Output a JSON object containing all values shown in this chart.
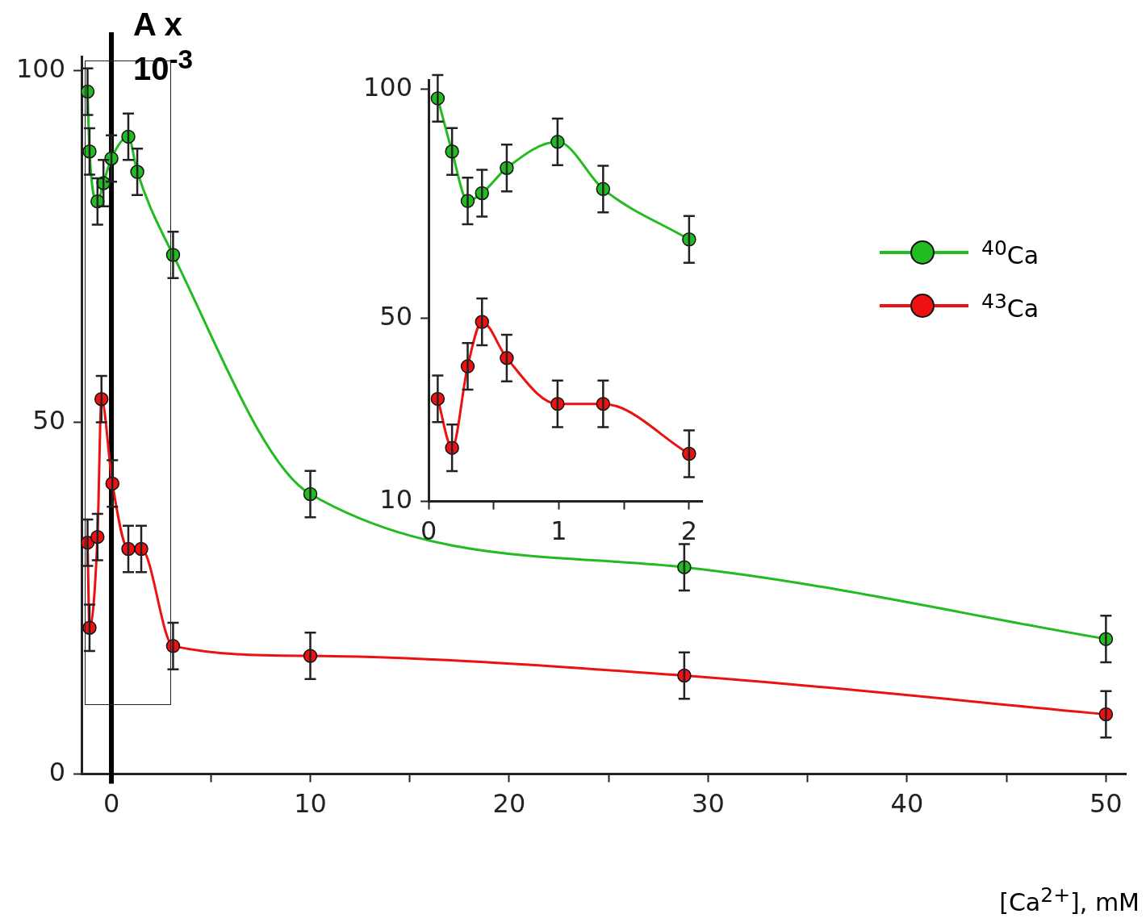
{
  "chart_data": [
    {
      "type": "line",
      "xlabel": "[Ca$^{2+}$], mM",
      "ylabel": "A x 10$^{-3}$",
      "xlim": [
        -1.5,
        51
      ],
      "xticks": [
        0,
        {
          "value": 5,
          "label": null
        },
        10,
        {
          "value": 15,
          "label": null
        },
        20,
        {
          "value": 25,
          "label": null
        },
        30,
        {
          "value": 35,
          "label": null
        },
        40,
        {
          "value": 45,
          "label": null
        },
        50
      ],
      "ylim": [
        0,
        102
      ],
      "yticks": [
        0,
        50,
        100
      ],
      "marker": "circle",
      "legend": "right",
      "grid": false,
      "ref_lines": [
        {
          "axis": "x",
          "value": 0,
          "color": "#000000"
        }
      ],
      "series": [
        {
          "name": "$^{40}$Ca",
          "color": "#22bb22",
          "x": [
            -1.2,
            -1.1,
            -0.7,
            -0.4,
            0,
            0.85,
            1.3,
            3.1,
            10,
            28.8,
            50
          ],
          "values": [
            97,
            88.5,
            81.4,
            84,
            87.5,
            90.6,
            85.6,
            73.8,
            39.8,
            29.4,
            19.2
          ],
          "errors": [
            3.3,
            3.3,
            3.3,
            3.3,
            3.3,
            3.3,
            3.3,
            3.3,
            3.3,
            3.3,
            3.3
          ]
        },
        {
          "name": "$^{43}$Ca",
          "color": "#ee1111",
          "x": [
            -1.2,
            -1.1,
            -0.7,
            -0.5,
            0.05,
            0.85,
            1.5,
            3.1,
            10,
            28.8,
            50
          ],
          "values": [
            32.9,
            20.8,
            33.7,
            53.3,
            41.3,
            32,
            32,
            18.2,
            16.8,
            14,
            8.5
          ],
          "errors": [
            3.3,
            3.3,
            3.3,
            3.3,
            3.3,
            3.3,
            3.3,
            3.3,
            3.3,
            3.3,
            3.3
          ]
        }
      ]
    },
    {
      "type": "line",
      "xlim": [
        0,
        2.1
      ],
      "xticks": [
        0,
        {
          "value": 0.5,
          "label": null
        },
        1,
        {
          "value": 1.5,
          "label": null
        },
        2
      ],
      "ylim": [
        10,
        102
      ],
      "yticks": [
        10,
        50,
        100
      ],
      "marker": "circle",
      "grid": false,
      "series": [
        {
          "color": "#22bb22",
          "x": [
            0.07,
            0.18,
            0.3,
            0.41,
            0.6,
            0.99,
            1.34,
            2
          ],
          "values": [
            98,
            86.4,
            75.6,
            77.3,
            82.8,
            88.5,
            78.2,
            67.2
          ],
          "errors": [
            5.1,
            5.1,
            5.1,
            5.1,
            5.1,
            5.1,
            5.1,
            5.1
          ]
        },
        {
          "color": "#ee1111",
          "x": [
            0.07,
            0.18,
            0.3,
            0.41,
            0.6,
            0.99,
            1.34,
            2
          ],
          "values": [
            32.4,
            21.7,
            39.5,
            49.2,
            41.3,
            31.3,
            31.3,
            20.4
          ],
          "errors": [
            5.1,
            5.1,
            5.1,
            5.1,
            5.1,
            5.1,
            5.1,
            5.1
          ]
        }
      ]
    }
  ]
}
